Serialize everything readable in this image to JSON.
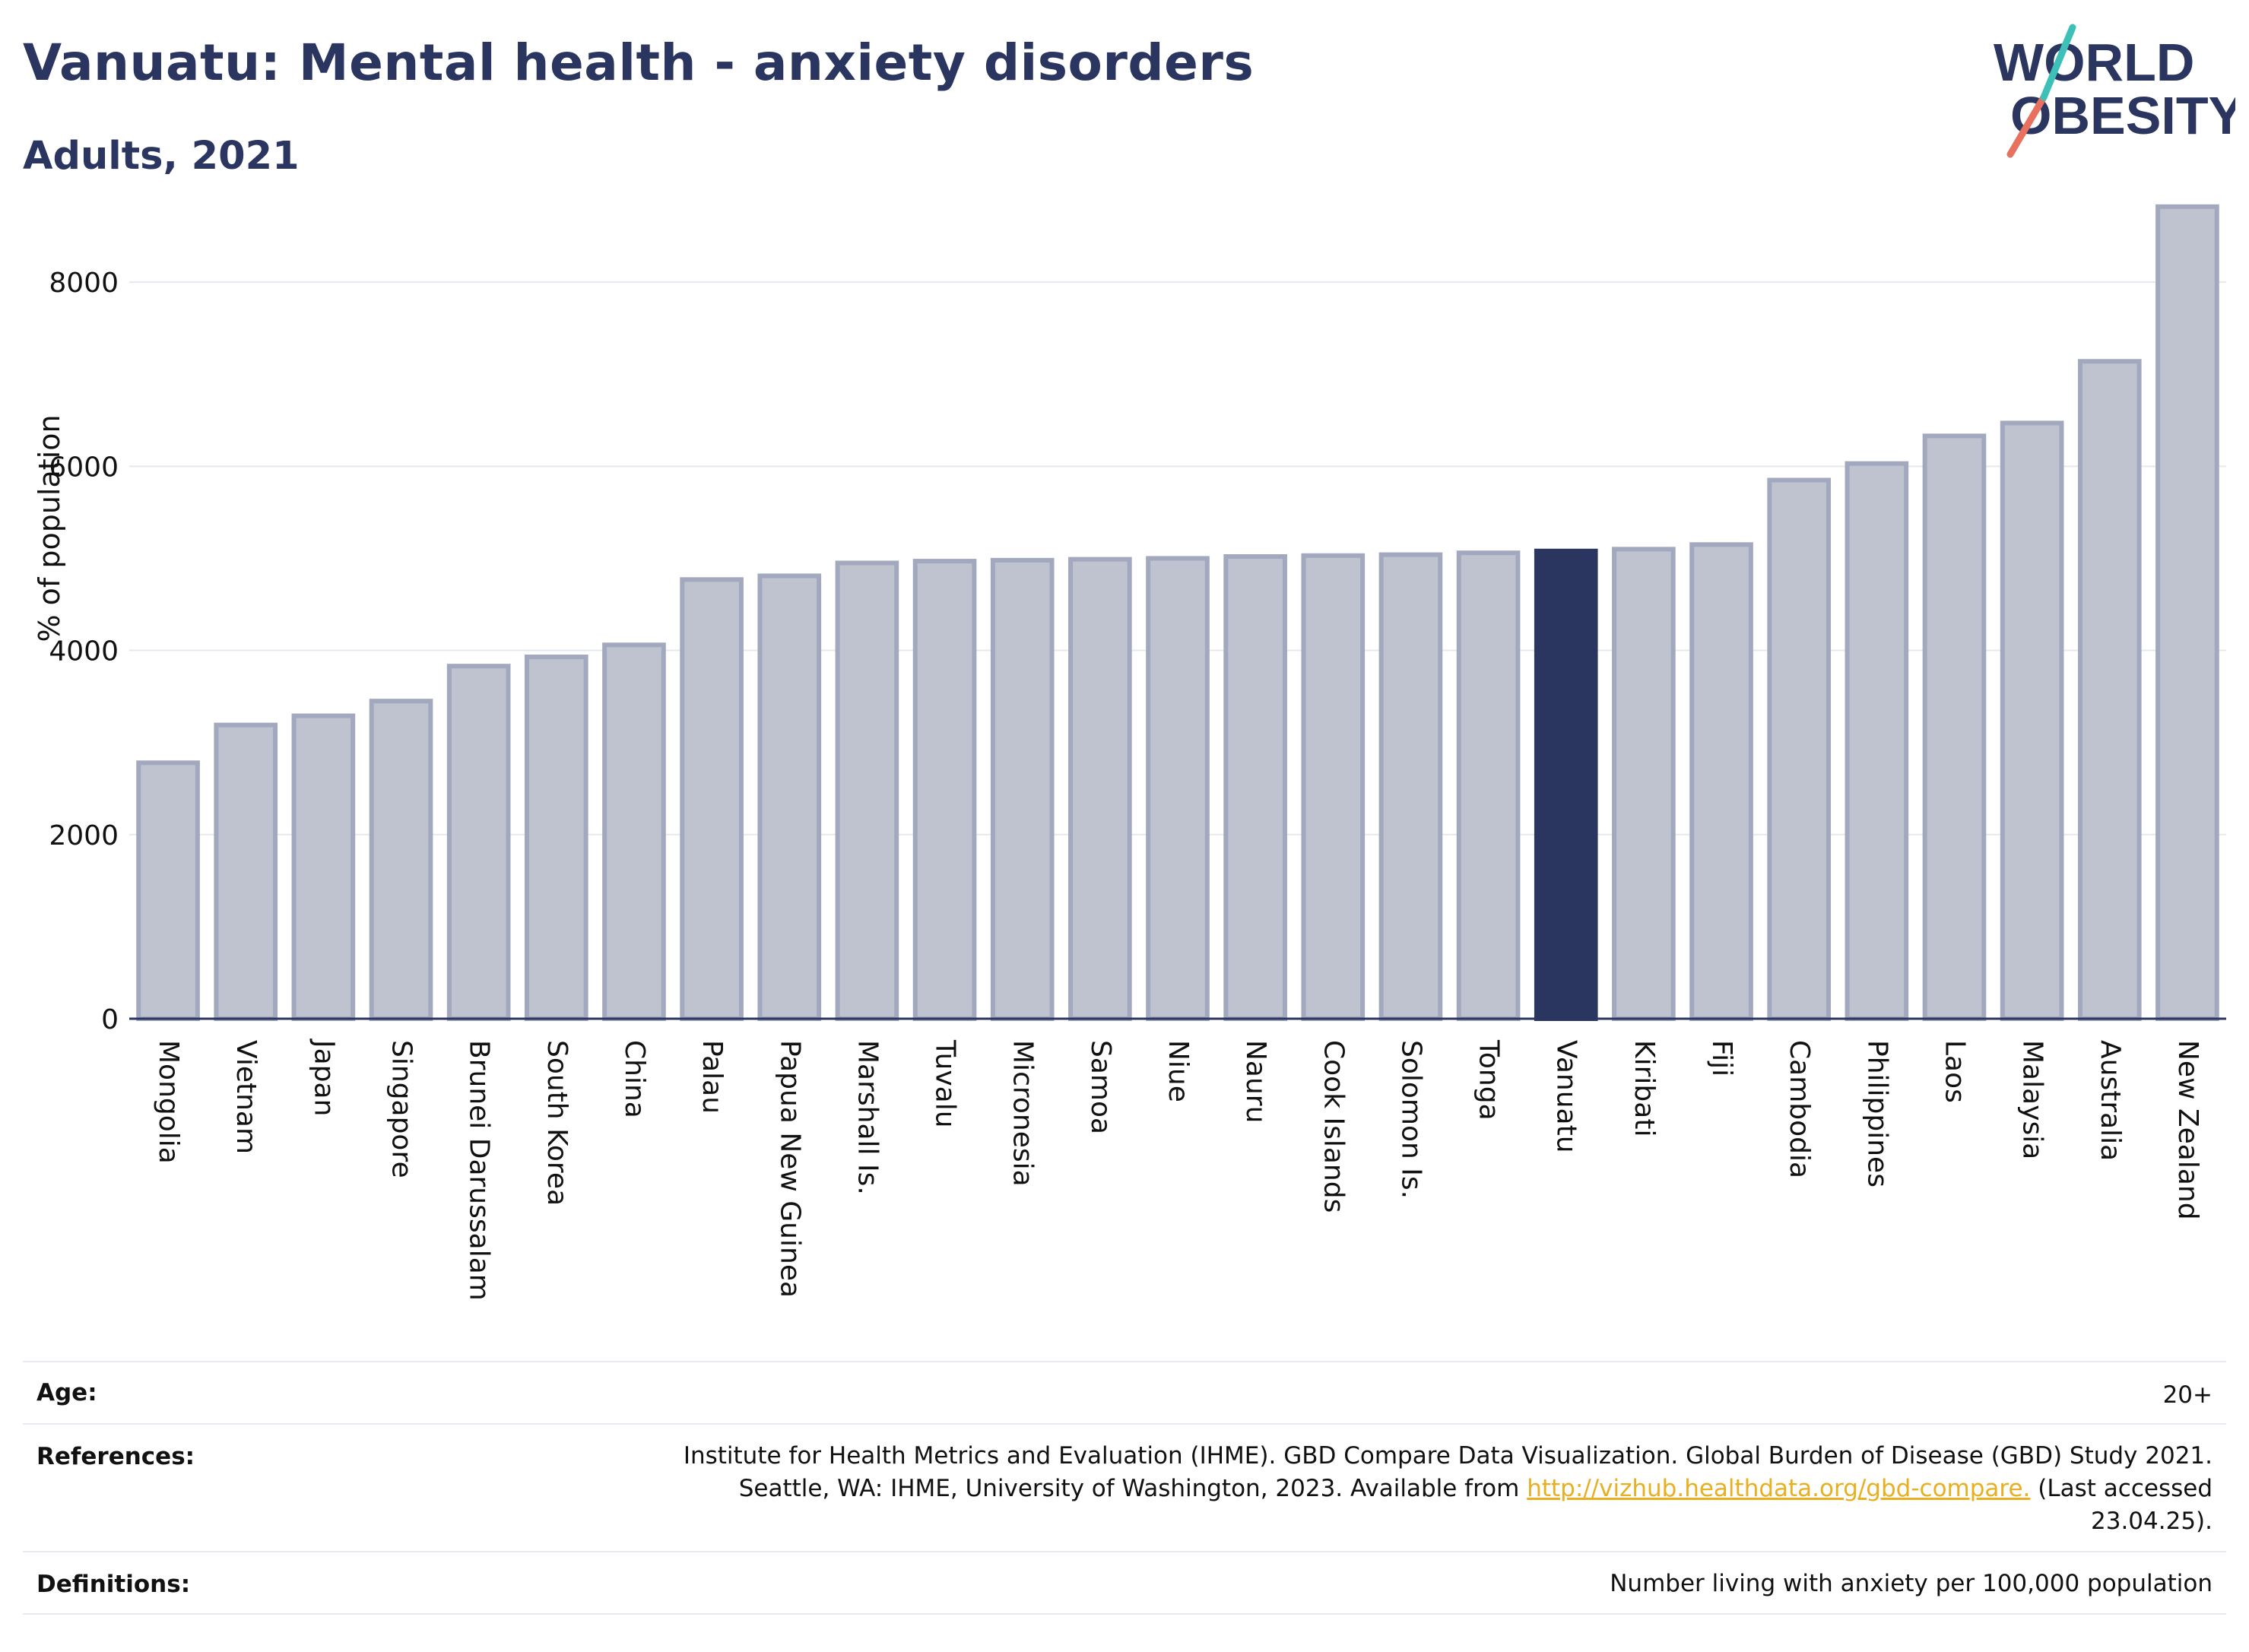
{
  "header": {
    "title": "Vanuatu: Mental health - anxiety disorders",
    "subtitle": "Adults, 2021"
  },
  "logo": {
    "line1": "WORLD",
    "line2": "OBESITY"
  },
  "colors": {
    "highlight": "#2a3560",
    "bar": "#bfc3d0",
    "bar_border": "#a2a8bd",
    "text": "#2a3560",
    "link": "#e8b021"
  },
  "chart_data": {
    "type": "bar",
    "ylabel": "% of population",
    "ylim": [
      0,
      9000
    ],
    "yticks": [
      0,
      2000,
      4000,
      6000,
      8000
    ],
    "grid": true,
    "highlight": "Vanuatu",
    "categories": [
      "Mongolia",
      "Vietnam",
      "Japan",
      "Singapore",
      "Brunei Darussalam",
      "South Korea",
      "China",
      "Palau",
      "Papua New Guinea",
      "Marshall Is.",
      "Tuvalu",
      "Micronesia",
      "Samoa",
      "Niue",
      "Nauru",
      "Cook Islands",
      "Solomon Is.",
      "Tonga",
      "Vanuatu",
      "Kiribati",
      "Fiji",
      "Cambodia",
      "Philippines",
      "Laos",
      "Malaysia",
      "Australia",
      "New Zealand"
    ],
    "values": [
      2780,
      3190,
      3290,
      3450,
      3830,
      3930,
      4060,
      4770,
      4810,
      4950,
      4970,
      4980,
      4990,
      5000,
      5020,
      5030,
      5040,
      5060,
      5080,
      5100,
      5150,
      5850,
      6030,
      6330,
      6470,
      7140,
      8820
    ]
  },
  "meta": {
    "age_label": "Age:",
    "age_value": "20+",
    "references_label": "References:",
    "references_line1": "Institute for Health Metrics and Evaluation (IHME). GBD Compare Data Visualization. Global Burden of Disease (GBD) Study 2021.",
    "references_line2_pre": "Seattle, WA: IHME, University of Washington, 2023. Available from ",
    "references_link": "http://vizhub.healthdata.org/gbd-compare.",
    "references_line2_post": " (Last accessed",
    "references_line3": "23.04.25).",
    "definitions_label": "Definitions:",
    "definitions_value": "Number living with anxiety per 100,000 population"
  }
}
